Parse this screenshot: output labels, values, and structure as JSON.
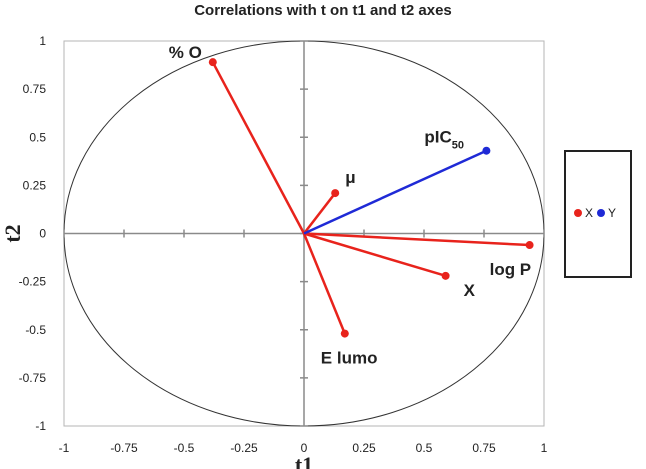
{
  "chart_data": {
    "type": "scatter",
    "title": "Correlations with t on t1 and t2 axes",
    "xlabel": "t1",
    "ylabel": "t2",
    "xlim": [
      -1,
      1
    ],
    "ylim": [
      -1,
      1
    ],
    "xticks": [
      "-1",
      "-0.75",
      "-0.5",
      "-0.25",
      "0",
      "0.25",
      "0.5",
      "0.75",
      "1"
    ],
    "yticks": [
      "-1",
      "-0.75",
      "-0.5",
      "-0.25",
      "0",
      "0.25",
      "0.5",
      "0.75",
      "1"
    ],
    "unit_circle": true,
    "legend_position": "right",
    "series": [
      {
        "name": "X",
        "color": "#e8231c",
        "points": [
          {
            "label": "% O",
            "x": -0.38,
            "y": 0.89
          },
          {
            "label": "μ",
            "x": 0.13,
            "y": 0.21
          },
          {
            "label": "log P",
            "x": 0.94,
            "y": -0.06
          },
          {
            "label": "X",
            "x": 0.59,
            "y": -0.22
          },
          {
            "label": "E lumo",
            "x": 0.17,
            "y": -0.52
          }
        ]
      },
      {
        "name": "Y",
        "color": "#1f2ad6",
        "points": [
          {
            "label": "pIC",
            "label_sub": "50",
            "x": 0.76,
            "y": 0.43
          }
        ]
      }
    ]
  }
}
